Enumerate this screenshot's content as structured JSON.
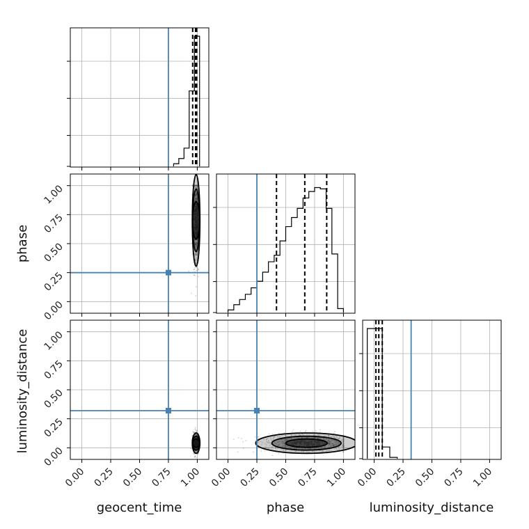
{
  "chart_data": {
    "type": "corner",
    "params": [
      "geocent_time",
      "phase",
      "luminosity_distance"
    ],
    "axis_labels": {
      "geocent_time": "geocent_time",
      "phase": "phase",
      "luminosity_distance": "luminosity_distance"
    },
    "tick_values": [
      0.0,
      0.25,
      0.5,
      0.75,
      1.0
    ],
    "tick_labels": [
      "0.00",
      "0.25",
      "0.50",
      "0.75",
      "1.00"
    ],
    "ranges": {
      "geocent_time": [
        -0.1,
        1.1
      ],
      "phase": [
        -0.1,
        1.1
      ],
      "luminosity_distance": [
        -0.1,
        1.1
      ]
    },
    "truths": {
      "geocent_time": 0.75,
      "phase": 0.25,
      "luminosity_distance": 0.32
    },
    "quantiles": {
      "geocent_time": [
        0.96,
        0.985,
        0.995
      ],
      "phase": [
        0.42,
        0.665,
        0.855
      ],
      "luminosity_distance": [
        0.015,
        0.04,
        0.07
      ]
    },
    "histograms": {
      "geocent_time": {
        "bins": [
          0.795,
          0.84,
          0.885,
          0.93,
          0.975,
          1.02
        ],
        "counts": [
          0.02,
          0.06,
          0.14,
          0.58,
          1.0
        ]
      },
      "phase": {
        "bins": [
          0.0,
          0.05,
          0.1,
          0.15,
          0.2,
          0.25,
          0.3,
          0.35,
          0.4,
          0.45,
          0.5,
          0.55,
          0.6,
          0.65,
          0.7,
          0.75,
          0.8,
          0.85,
          0.9,
          0.95,
          1.0
        ],
        "counts": [
          0.02,
          0.06,
          0.1,
          0.14,
          0.19,
          0.24,
          0.31,
          0.39,
          0.44,
          0.55,
          0.66,
          0.73,
          0.8,
          0.88,
          0.93,
          0.96,
          0.95,
          0.8,
          0.45,
          0.03
        ]
      },
      "luminosity_distance": {
        "bins": [
          -0.06,
          0.005,
          0.07,
          0.135,
          0.2
        ],
        "counts": [
          1.0,
          1.0,
          0.09,
          0.01
        ]
      }
    },
    "density_2d": [
      {
        "x": "geocent_time",
        "y": "phase",
        "center": [
          0.99,
          0.7
        ],
        "spread": [
          0.015,
          0.18
        ]
      },
      {
        "x": "geocent_time",
        "y": "luminosity_distance",
        "center": [
          0.99,
          0.04
        ],
        "spread": [
          0.015,
          0.04
        ]
      },
      {
        "x": "phase",
        "y": "luminosity_distance",
        "center": [
          0.68,
          0.04
        ],
        "spread": [
          0.2,
          0.04
        ]
      }
    ],
    "grid": true,
    "colors": {
      "truth": "#4682b4",
      "hist": "#000000",
      "grid": "#b0b0b0",
      "points": "#555555"
    }
  }
}
